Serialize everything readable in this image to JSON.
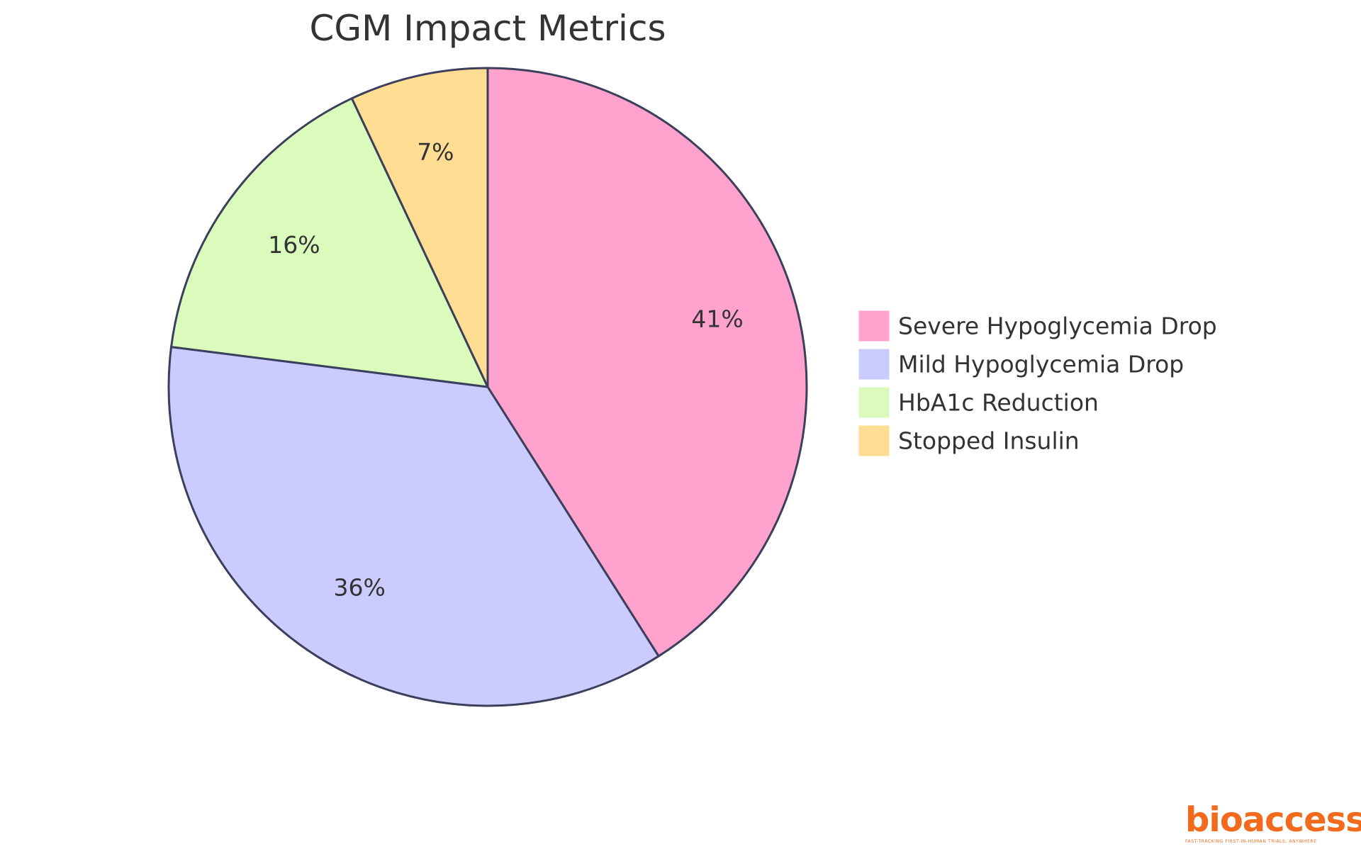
{
  "chart_data": {
    "type": "pie",
    "title": "CGM Impact Metrics",
    "slices": [
      {
        "label": "Severe Hypoglycemia Drop",
        "value": 41,
        "display": "41%",
        "color": "#ffa3ce"
      },
      {
        "label": "Mild Hypoglycemia Drop",
        "value": 36,
        "display": "36%",
        "color": "#cbcbff"
      },
      {
        "label": "HbA1c Reduction",
        "value": 16,
        "display": "16%",
        "color": "#dafbbb"
      },
      {
        "label": "Stopped Insulin",
        "value": 7,
        "display": "7%",
        "color": "#ffde94"
      }
    ],
    "legend_position": "right",
    "stroke_color": "#3b3f5c"
  },
  "branding": {
    "logo_text": "bioaccess",
    "logo_mark": "®",
    "tagline": "FAST-TRACKING FIRST-IN-HUMAN TRIALS, ANYWHERE",
    "color": "#f26b1d"
  }
}
